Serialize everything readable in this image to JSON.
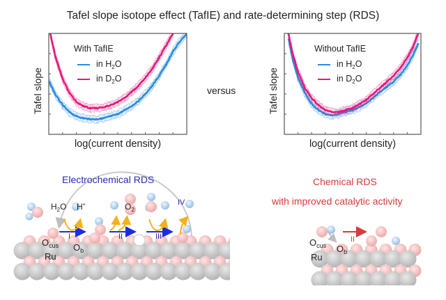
{
  "title": "Tafel slope isotope effect (TafIE) and rate-determining step (RDS)",
  "versus": "versus",
  "colors": {
    "h2o": "#2b8be0",
    "d2o": "#e8187a",
    "electrochemical": "#2a2ab8",
    "chemical": "#d63a3a",
    "yellow_arrow": "#f2b21a",
    "blue_arrow": "#1a2ee0",
    "ru_atom": "#c8c8c8",
    "o_atom": "#f5c4c4",
    "h_atom": "#b9d6ef"
  },
  "chart_data": [
    {
      "type": "line",
      "title": "With TafIE",
      "xlabel": "log(current density)",
      "ylabel": "Tafel slope",
      "xlim": [
        0,
        10
      ],
      "ylim": [
        0,
        10
      ],
      "x_ticks": 9,
      "y_ticks": 4,
      "tick_labels": false,
      "legend_position": "top-center",
      "series": [
        {
          "name": "in H2O",
          "label_main": "in H",
          "label_sub": "2",
          "label_tail": "O",
          "color": "#2b8be0",
          "x": [
            0,
            0.5,
            1,
            1.5,
            2,
            2.5,
            3,
            3.5,
            4,
            4.5,
            5,
            5.5,
            6,
            6.5,
            7,
            7.5,
            8,
            8.5,
            9,
            9.5,
            10
          ],
          "y": [
            5.3,
            3.9,
            2.9,
            2.2,
            1.8,
            1.6,
            1.5,
            1.5,
            1.6,
            1.8,
            2.0,
            2.4,
            2.8,
            3.3,
            4.0,
            4.8,
            5.8,
            6.9,
            8.2,
            9.2,
            10
          ]
        },
        {
          "name": "in D2O",
          "label_main": "in D",
          "label_sub": "2",
          "label_tail": "O",
          "color": "#e8187a",
          "x": [
            0.1,
            0.5,
            1,
            1.5,
            2,
            2.5,
            3,
            3.5,
            4,
            4.5,
            5,
            5.5,
            6,
            6.5,
            7,
            7.5,
            8,
            8.5,
            9
          ],
          "y": [
            10,
            7.6,
            5.5,
            4.1,
            3.2,
            2.8,
            2.6,
            2.6,
            2.7,
            2.9,
            3.2,
            3.6,
            4.2,
            4.8,
            5.6,
            6.5,
            7.6,
            8.8,
            10
          ]
        }
      ]
    },
    {
      "type": "line",
      "title": "Without TafIE",
      "xlabel": "log(current density)",
      "ylabel": "Tafel slope",
      "xlim": [
        0,
        10
      ],
      "ylim": [
        0,
        10
      ],
      "x_ticks": 9,
      "y_ticks": 4,
      "tick_labels": false,
      "legend_position": "top-center",
      "series": [
        {
          "name": "in H2O",
          "label_main": "in H",
          "label_sub": "2",
          "label_tail": "O",
          "color": "#2b8be0",
          "x": [
            0.3,
            0.6,
            1,
            1.5,
            2,
            2.5,
            3,
            3.5,
            4,
            4.5,
            5,
            5.5,
            6,
            6.5,
            7,
            7.5,
            8,
            8.5,
            9,
            9.4,
            9.8
          ],
          "y": [
            9.5,
            7.5,
            5.6,
            4.1,
            3.0,
            2.4,
            2.0,
            1.9,
            2.0,
            2.2,
            2.4,
            2.7,
            3.1,
            3.6,
            4.2,
            4.7,
            5.2,
            5.9,
            6.8,
            7.8,
            9.0
          ]
        },
        {
          "name": "in D2O",
          "label_main": "in D",
          "label_sub": "2",
          "label_tail": "O",
          "color": "#e8187a",
          "x": [
            0.3,
            0.6,
            1,
            1.5,
            2,
            2.5,
            3,
            3.5,
            4,
            4.5,
            5,
            5.5,
            6,
            6.5,
            7,
            7.5,
            8,
            8.5,
            9,
            9.4,
            9.8
          ],
          "y": [
            10,
            8.0,
            6.2,
            4.6,
            3.6,
            2.9,
            2.4,
            2.2,
            2.2,
            2.4,
            2.6,
            3.0,
            3.4,
            4.0,
            4.6,
            5.2,
            5.8,
            6.6,
            7.6,
            8.6,
            10
          ]
        }
      ]
    }
  ],
  "electrochemical": {
    "title": "Electrochemical RDS",
    "steps": [
      "I",
      "II",
      "III",
      "IV"
    ],
    "h2o_main": "H",
    "h2o_sub": "2",
    "h2o_tail": "O",
    "hplus_main": "H",
    "hplus_sup": "+",
    "o2_main": "O",
    "o2_sub": "2",
    "ocus_main": "O",
    "ocus_sub": "cus",
    "ob_main": "O",
    "ob_sub": "b",
    "ru": "Ru"
  },
  "chemical": {
    "title_line1": "Chemical RDS",
    "title_line2": "with improved catalytic activity",
    "step": "II",
    "ocus_main": "O",
    "ocus_sub": "cus",
    "ob_main": "O",
    "ob_sub": "b",
    "ru": "Ru"
  }
}
